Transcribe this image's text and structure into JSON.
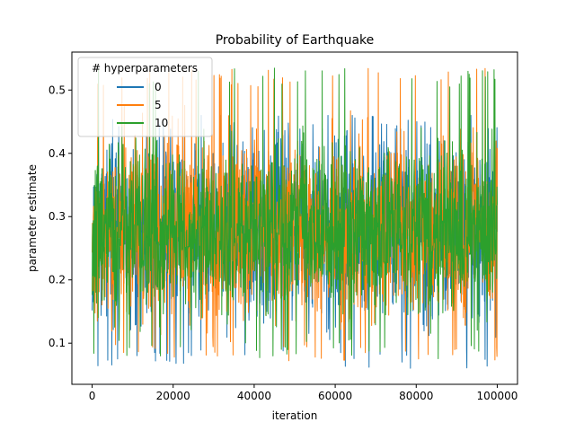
{
  "chart_data": {
    "type": "line",
    "title": "Probability of Earthquake",
    "xlabel": "iteration",
    "ylabel": "parameter estimate",
    "xlim": [
      -5000,
      105000
    ],
    "ylim": [
      0.035,
      0.56
    ],
    "x_ticks": [
      0,
      20000,
      40000,
      60000,
      80000,
      100000
    ],
    "x_tick_labels": [
      "0",
      "20000",
      "40000",
      "60000",
      "80000",
      "100000"
    ],
    "y_ticks": [
      0.1,
      0.2,
      0.3,
      0.4,
      0.5
    ],
    "y_tick_labels": [
      "0.1",
      "0.2",
      "0.3",
      "0.4",
      "0.5"
    ],
    "grid": false,
    "legend": {
      "title": "# hyperparameters",
      "placement": "top-left"
    },
    "x_range": [
      0,
      100000
    ],
    "series": [
      {
        "name": "0",
        "color": "#1f77b4",
        "mean": 0.28,
        "spread": 0.07,
        "min": 0.06,
        "max": 0.46,
        "seed": 11
      },
      {
        "name": "5",
        "color": "#ff7f0e",
        "mean": 0.28,
        "spread": 0.07,
        "min": 0.07,
        "max": 0.535,
        "seed": 23
      },
      {
        "name": "10",
        "color": "#2ca02c",
        "mean": 0.28,
        "spread": 0.065,
        "min": 0.075,
        "max": 0.535,
        "seed": 37
      }
    ]
  }
}
